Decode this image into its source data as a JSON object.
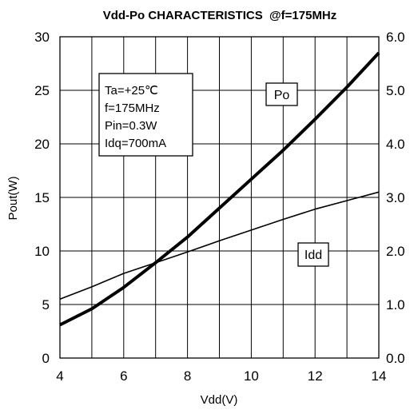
{
  "chart_data": {
    "type": "line",
    "title": "Vdd-Po CHARACTERISTICS  @f=175MHz",
    "xlabel": "Vdd(V)",
    "ylabel": "Pout(W)",
    "y2label": "",
    "xlim": [
      4,
      14
    ],
    "ylim": [
      0,
      30
    ],
    "y2lim": [
      0.0,
      6.0
    ],
    "grid": true,
    "x_ticks": [
      "4",
      "6",
      "8",
      "10",
      "12",
      "14"
    ],
    "y_ticks": [
      "0",
      "5",
      "10",
      "15",
      "20",
      "25",
      "30"
    ],
    "y2_ticks": [
      "0.0",
      "1.0",
      "2.0",
      "3.0",
      "4.0",
      "5.0",
      "6.0"
    ],
    "conditions": [
      "Ta=+25℃",
      "f=175MHz",
      "Pin=0.3W",
      "Idq=700mA"
    ],
    "series": [
      {
        "name": "Po",
        "axis": "left",
        "color": "#000000",
        "x": [
          4,
          5,
          6,
          7,
          8,
          9,
          10,
          11,
          12,
          13,
          14
        ],
        "values": [
          3.1,
          4.6,
          6.6,
          8.9,
          11.3,
          14.0,
          16.7,
          19.4,
          22.3,
          25.3,
          28.5
        ]
      },
      {
        "name": "Idd",
        "axis": "right",
        "color": "#000000",
        "x": [
          4,
          5,
          6,
          7,
          8,
          9,
          10,
          11,
          12,
          13,
          14
        ],
        "values": [
          1.1,
          1.33,
          1.58,
          1.78,
          1.98,
          2.19,
          2.39,
          2.59,
          2.78,
          2.94,
          3.1
        ]
      }
    ]
  }
}
